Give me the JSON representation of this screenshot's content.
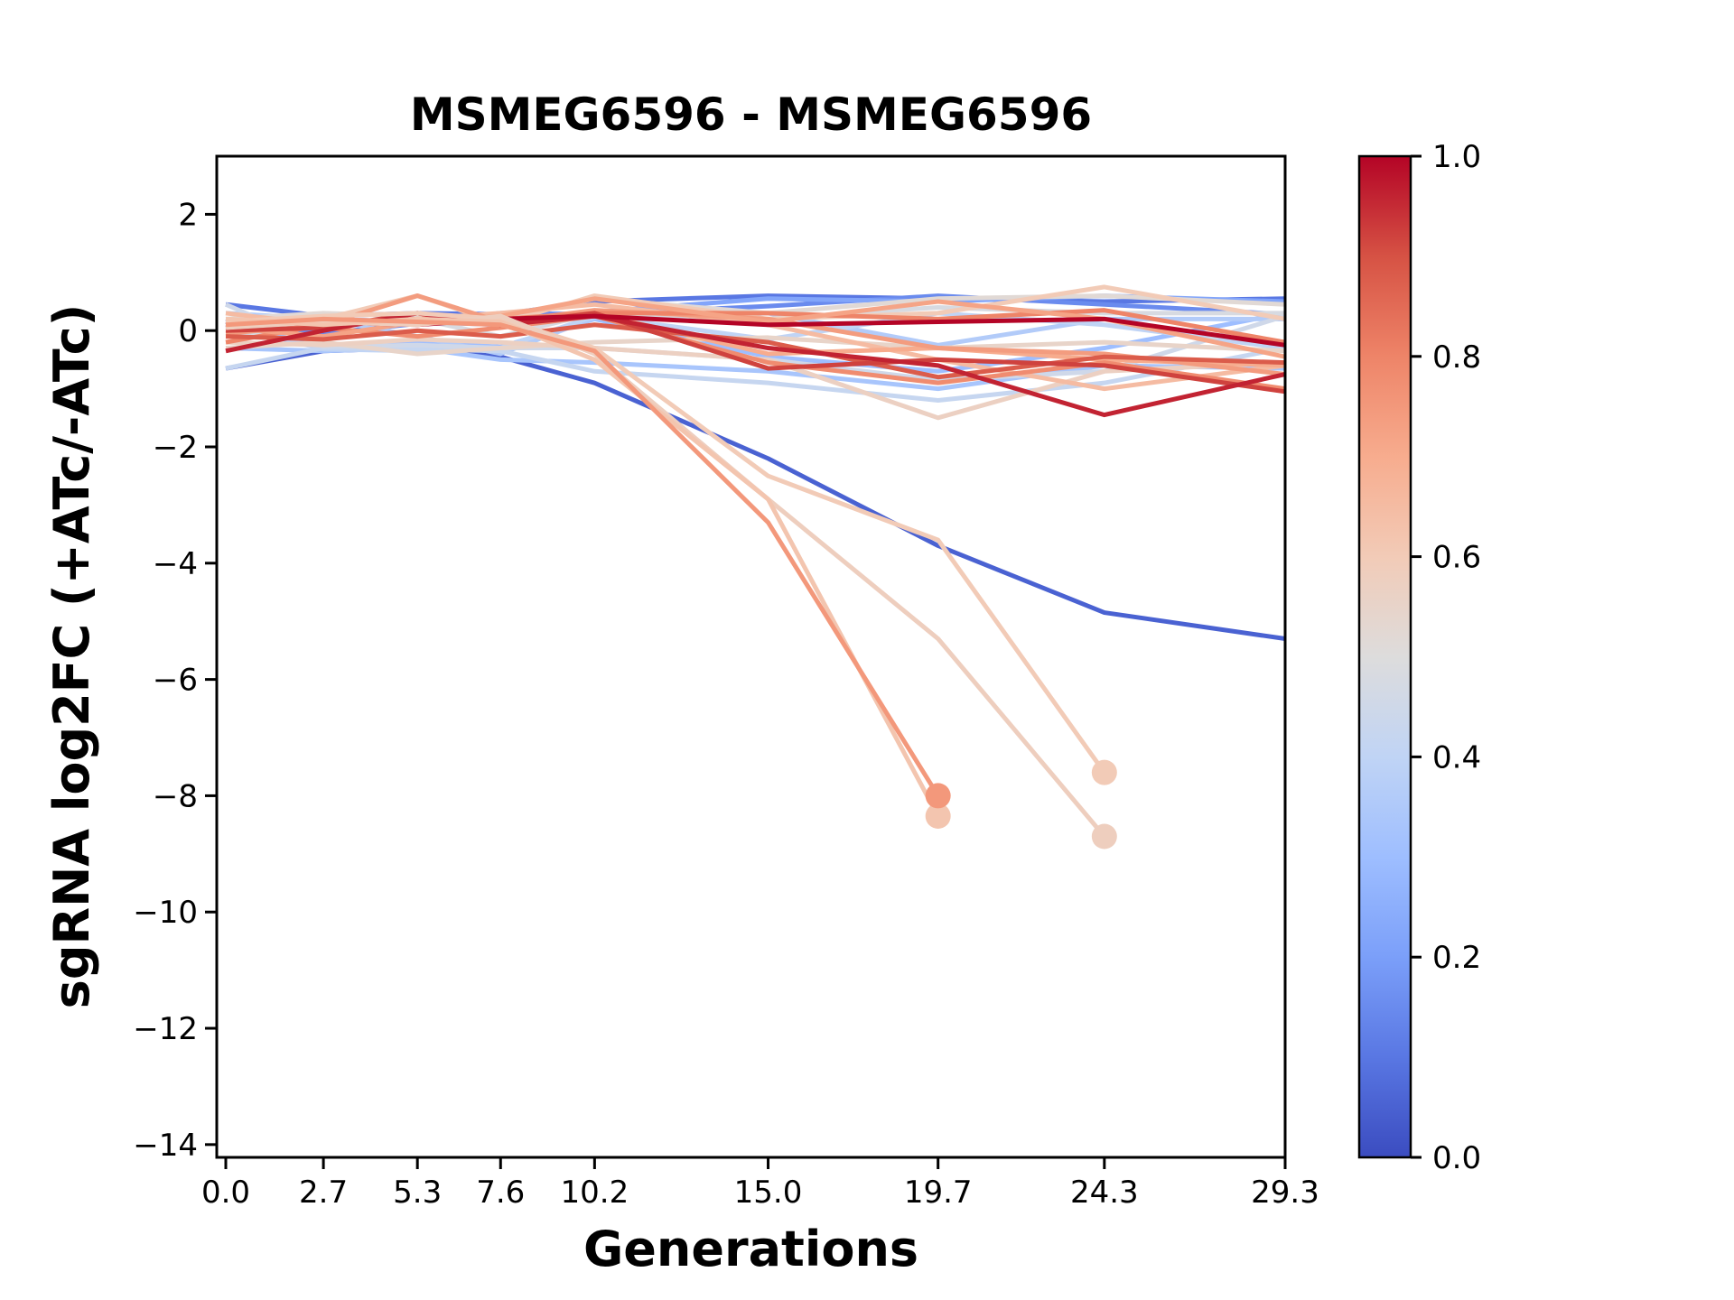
{
  "chart_data": {
    "type": "line",
    "title": "MSMEG6596 - MSMEG6596",
    "xlabel": "Generations",
    "ylabel": "sgRNA log2FC (+ATc/-ATc)",
    "grid": false,
    "legend": "none",
    "xlim": [
      -0.25,
      29.3
    ],
    "ylim": [
      -14.22,
      3.0
    ],
    "x": [
      0.0,
      2.7,
      5.3,
      7.6,
      10.2,
      15.0,
      19.7,
      24.3,
      29.3
    ],
    "x_tick_labels": [
      "0.0",
      "2.7",
      "5.3",
      "7.6",
      "10.2",
      "15.0",
      "19.7",
      "24.3",
      "29.3"
    ],
    "y_tick_values": [
      2,
      0,
      -2,
      -4,
      -6,
      -8,
      -10,
      -12,
      -14
    ],
    "colorbar": {
      "cmap": "coolwarm",
      "vmin": 0.0,
      "vmax": 1.0,
      "tick_labels": [
        "1.0",
        "0.8",
        "0.6",
        "0.4",
        "0.2",
        "0.0"
      ]
    },
    "colormap_anchors": [
      {
        "pos": 0.0,
        "hex": "#3b4cc0"
      },
      {
        "pos": 0.1,
        "hex": "#5977e3"
      },
      {
        "pos": 0.2,
        "hex": "#7b9ff9"
      },
      {
        "pos": 0.3,
        "hex": "#9ebeff"
      },
      {
        "pos": 0.4,
        "hex": "#c0d4f5"
      },
      {
        "pos": 0.5,
        "hex": "#dddcdc"
      },
      {
        "pos": 0.6,
        "hex": "#f2cbb7"
      },
      {
        "pos": 0.7,
        "hex": "#f7ac8e"
      },
      {
        "pos": 0.8,
        "hex": "#ee8468"
      },
      {
        "pos": 0.9,
        "hex": "#d65244"
      },
      {
        "pos": 1.0,
        "hex": "#b40426"
      }
    ],
    "series": [
      {
        "colormap_value": 0.05,
        "end_marker": false,
        "values": [
          -0.65,
          -0.35,
          -0.3,
          -0.45,
          -0.9,
          -2.2,
          -3.7,
          -4.85,
          -5.3
        ]
      },
      {
        "colormap_value": 0.1,
        "end_marker": false,
        "values": [
          0.45,
          0.25,
          0.3,
          0.28,
          0.5,
          0.6,
          0.55,
          0.5,
          0.55
        ]
      },
      {
        "colormap_value": 0.15,
        "end_marker": false,
        "values": [
          0.2,
          -0.05,
          0.12,
          0.3,
          0.28,
          0.42,
          0.6,
          0.45,
          0.28
        ]
      },
      {
        "colormap_value": 0.22,
        "end_marker": false,
        "values": [
          0.1,
          0.2,
          0.15,
          0.1,
          0.32,
          0.55,
          0.5,
          0.6,
          0.5
        ]
      },
      {
        "colormap_value": 0.3,
        "end_marker": false,
        "values": [
          0.15,
          -0.3,
          -0.2,
          -0.28,
          0.2,
          -0.45,
          -0.7,
          -0.3,
          0.3
        ]
      },
      {
        "colormap_value": 0.33,
        "end_marker": false,
        "values": [
          -0.3,
          -0.35,
          -0.3,
          -0.5,
          -0.55,
          -0.7,
          -1.0,
          -0.6,
          -0.65
        ]
      },
      {
        "colormap_value": 0.36,
        "end_marker": false,
        "values": [
          0.3,
          0.2,
          -0.1,
          -0.4,
          0.22,
          0.3,
          -0.25,
          0.2,
          0.2
        ]
      },
      {
        "colormap_value": 0.4,
        "end_marker": false,
        "values": [
          0.1,
          -0.32,
          -0.35,
          -0.3,
          0.25,
          -0.15,
          0.3,
          0.1,
          -0.3
        ]
      },
      {
        "colormap_value": 0.42,
        "end_marker": false,
        "values": [
          -0.65,
          -0.3,
          -0.32,
          -0.35,
          -0.7,
          -0.9,
          -1.2,
          -0.9,
          -0.3
        ]
      },
      {
        "colormap_value": 0.45,
        "end_marker": false,
        "values": [
          0.45,
          -0.28,
          -0.25,
          -0.3,
          -0.3,
          -0.5,
          -0.85,
          -0.7,
          0.25
        ]
      },
      {
        "colormap_value": 0.48,
        "end_marker": false,
        "values": [
          -0.1,
          0.1,
          0.2,
          -0.1,
          0.3,
          0.2,
          0.4,
          0.3,
          0.3
        ]
      },
      {
        "colormap_value": 0.52,
        "end_marker": false,
        "values": [
          0.2,
          0.3,
          0.25,
          0.2,
          0.55,
          0.3,
          0.55,
          0.6,
          0.45
        ]
      },
      {
        "colormap_value": 0.55,
        "end_marker": false,
        "values": [
          -0.3,
          -0.2,
          -0.4,
          -0.3,
          -0.2,
          -0.12,
          -0.3,
          -0.2,
          -0.35
        ]
      },
      {
        "colormap_value": 0.57,
        "end_marker": false,
        "values": [
          -0.2,
          -0.25,
          -0.15,
          -0.2,
          -0.3,
          -0.5,
          -1.5,
          -0.7,
          -0.55
        ]
      },
      {
        "colormap_value": 0.6,
        "end_marker": false,
        "values": [
          0.1,
          0.2,
          0.6,
          0.12,
          0.6,
          0.2,
          0.3,
          0.75,
          0.2
        ]
      },
      {
        "colormap_value": 0.65,
        "end_marker": false,
        "values": [
          0.3,
          0.1,
          0.2,
          0.3,
          0.45,
          0.1,
          -0.5,
          -1.0,
          -0.6
        ]
      },
      {
        "colormap_value": 0.7,
        "end_marker": false,
        "values": [
          0.1,
          0.15,
          0.2,
          0.1,
          0.3,
          -0.4,
          -0.3,
          -0.5,
          -0.6
        ]
      },
      {
        "colormap_value": 0.74,
        "end_marker": false,
        "values": [
          -0.05,
          0.1,
          0.6,
          0.15,
          0.35,
          0.2,
          -0.3,
          -0.4,
          -0.75
        ]
      },
      {
        "colormap_value": 0.78,
        "end_marker": false,
        "values": [
          0.15,
          0.05,
          -0.1,
          0.05,
          0.25,
          -0.55,
          -0.9,
          -0.55,
          -1.0
        ]
      },
      {
        "colormap_value": 0.8,
        "end_marker": false,
        "values": [
          -0.2,
          0.1,
          0.2,
          0.2,
          0.3,
          0.3,
          0.2,
          0.35,
          -0.2
        ]
      },
      {
        "colormap_value": 0.72,
        "end_marker": false,
        "values": [
          0.05,
          -0.1,
          0.15,
          0.25,
          0.55,
          0.15,
          0.5,
          0.2,
          -0.45
        ]
      },
      {
        "colormap_value": 0.88,
        "end_marker": false,
        "values": [
          -0.1,
          -0.15,
          0.0,
          -0.1,
          0.1,
          -0.2,
          -0.8,
          -0.45,
          -0.55
        ]
      },
      {
        "colormap_value": 0.92,
        "end_marker": false,
        "values": [
          0.0,
          0.05,
          0.3,
          0.1,
          0.3,
          -0.65,
          -0.5,
          -0.6,
          -1.05
        ]
      },
      {
        "colormap_value": 0.96,
        "end_marker": false,
        "values": [
          -0.35,
          0.0,
          0.3,
          0.1,
          0.25,
          -0.3,
          -0.6,
          -1.45,
          -0.75
        ]
      },
      {
        "colormap_value": 1.0,
        "end_marker": false,
        "values": [
          0.05,
          0.15,
          0.1,
          0.2,
          0.25,
          0.1,
          0.15,
          0.2,
          -0.25
        ]
      },
      {
        "colormap_value": 0.6,
        "end_marker": true,
        "values": [
          0.15,
          0.25,
          0.3,
          0.2,
          -0.3,
          -2.5,
          -3.6,
          -7.6
        ]
      },
      {
        "colormap_value": 0.58,
        "end_marker": true,
        "values": [
          0.05,
          0.15,
          0.1,
          0.25,
          -0.4,
          -2.9,
          -5.3,
          -8.7
        ]
      },
      {
        "colormap_value": 0.62,
        "end_marker": true,
        "values": [
          0.2,
          0.1,
          0.2,
          0.15,
          -0.5,
          -2.9,
          -8.35
        ]
      },
      {
        "colormap_value": 0.75,
        "end_marker": true,
        "values": [
          0.1,
          0.2,
          0.15,
          0.1,
          -0.35,
          -3.3,
          -8.0
        ]
      }
    ]
  }
}
